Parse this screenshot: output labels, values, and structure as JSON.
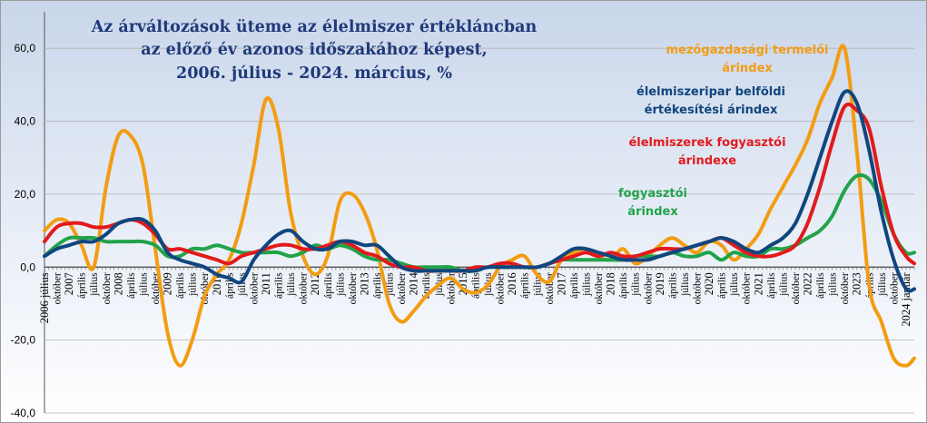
{
  "chart_data": {
    "type": "line",
    "title": [
      "Az árváltozások üteme az élelmiszer  értékláncban",
      "az előző év azonos időszakához  képest,",
      "2006. július  - 2024. március, %"
    ],
    "ylim": [
      -40,
      70
    ],
    "yticks": [
      "-40,0",
      "-20,0",
      "0,0",
      "20,0",
      "40,0",
      "60,0"
    ],
    "ytick_values": [
      -40,
      -20,
      0,
      20,
      40,
      60
    ],
    "x_start": "2006-07",
    "x_end": "2024-03",
    "grid": true,
    "month_labels": {
      "1": "január",
      "4": "április",
      "7": "július",
      "10": "október"
    },
    "year_labels": [
      "2006 július",
      "2007",
      "2008",
      "2009",
      "2010",
      "2011",
      "2012",
      "2013",
      "2014",
      "2015",
      "2016",
      "2017",
      "2018",
      "2019",
      "2020",
      "2021",
      "2022",
      "2023",
      "2024 január"
    ],
    "series": [
      {
        "name": "mezőgazdasági termelői árindex",
        "label_lines": [
          "mezőgazdasági termelői",
          "árindex"
        ],
        "color": "#f39c12",
        "points": [
          [
            "2006-07",
            10
          ],
          [
            "2006-10",
            13
          ],
          [
            "2007-01",
            12
          ],
          [
            "2007-04",
            6
          ],
          [
            "2007-07",
            0
          ],
          [
            "2007-10",
            22
          ],
          [
            "2008-01",
            36
          ],
          [
            "2008-04",
            36
          ],
          [
            "2008-07",
            28
          ],
          [
            "2008-10",
            5
          ],
          [
            "2009-01",
            -18
          ],
          [
            "2009-04",
            -27
          ],
          [
            "2009-07",
            -20
          ],
          [
            "2009-10",
            -8
          ],
          [
            "2010-01",
            -2
          ],
          [
            "2010-04",
            2
          ],
          [
            "2010-07",
            12
          ],
          [
            "2010-10",
            28
          ],
          [
            "2011-01",
            46
          ],
          [
            "2011-04",
            38
          ],
          [
            "2011-07",
            15
          ],
          [
            "2011-10",
            3
          ],
          [
            "2012-01",
            -2
          ],
          [
            "2012-04",
            3
          ],
          [
            "2012-07",
            18
          ],
          [
            "2012-10",
            20
          ],
          [
            "2013-01",
            15
          ],
          [
            "2013-04",
            5
          ],
          [
            "2013-07",
            -10
          ],
          [
            "2013-10",
            -15
          ],
          [
            "2014-01",
            -12
          ],
          [
            "2014-04",
            -8
          ],
          [
            "2014-07",
            -5
          ],
          [
            "2014-10",
            -3
          ],
          [
            "2015-01",
            -6
          ],
          [
            "2015-04",
            -7
          ],
          [
            "2015-07",
            -5
          ],
          [
            "2015-10",
            0
          ],
          [
            "2016-01",
            2
          ],
          [
            "2016-04",
            3
          ],
          [
            "2016-07",
            -2
          ],
          [
            "2016-10",
            -4
          ],
          [
            "2017-01",
            2
          ],
          [
            "2017-04",
            4
          ],
          [
            "2017-07",
            5
          ],
          [
            "2017-10",
            3
          ],
          [
            "2018-01",
            2
          ],
          [
            "2018-04",
            5
          ],
          [
            "2018-07",
            1
          ],
          [
            "2018-10",
            3
          ],
          [
            "2019-01",
            6
          ],
          [
            "2019-04",
            8
          ],
          [
            "2019-07",
            6
          ],
          [
            "2019-10",
            4
          ],
          [
            "2020-01",
            7
          ],
          [
            "2020-04",
            6
          ],
          [
            "2020-07",
            2
          ],
          [
            "2020-10",
            5
          ],
          [
            "2021-01",
            9
          ],
          [
            "2021-04",
            16
          ],
          [
            "2021-07",
            22
          ],
          [
            "2021-10",
            28
          ],
          [
            "2022-01",
            35
          ],
          [
            "2022-04",
            45
          ],
          [
            "2022-07",
            52
          ],
          [
            "2022-10",
            60
          ],
          [
            "2023-01",
            32
          ],
          [
            "2023-04",
            -5
          ],
          [
            "2023-07",
            -15
          ],
          [
            "2023-10",
            -25
          ],
          [
            "2024-01",
            -27
          ],
          [
            "2024-03",
            -25
          ]
        ]
      },
      {
        "name": "élelmiszeripar belföldi értékesítési árindex",
        "label_lines": [
          "élelmiszeripar  belföldi",
          "értékesítési  árindex"
        ],
        "color": "#10467e",
        "points": [
          [
            "2006-07",
            3
          ],
          [
            "2006-10",
            5
          ],
          [
            "2007-01",
            6
          ],
          [
            "2007-04",
            7
          ],
          [
            "2007-07",
            7
          ],
          [
            "2007-10",
            9
          ],
          [
            "2008-01",
            12
          ],
          [
            "2008-04",
            13
          ],
          [
            "2008-07",
            13
          ],
          [
            "2008-10",
            10
          ],
          [
            "2009-01",
            4
          ],
          [
            "2009-04",
            2
          ],
          [
            "2009-07",
            1
          ],
          [
            "2009-10",
            0
          ],
          [
            "2010-01",
            -2
          ],
          [
            "2010-04",
            -3
          ],
          [
            "2010-07",
            -4
          ],
          [
            "2010-10",
            2
          ],
          [
            "2011-01",
            6
          ],
          [
            "2011-04",
            9
          ],
          [
            "2011-07",
            10
          ],
          [
            "2011-10",
            7
          ],
          [
            "2012-01",
            5
          ],
          [
            "2012-04",
            5
          ],
          [
            "2012-07",
            7
          ],
          [
            "2012-10",
            7
          ],
          [
            "2013-01",
            6
          ],
          [
            "2013-04",
            6
          ],
          [
            "2013-07",
            3
          ],
          [
            "2013-10",
            0
          ],
          [
            "2014-01",
            -1
          ],
          [
            "2014-04",
            -1
          ],
          [
            "2014-07",
            -1
          ],
          [
            "2014-10",
            -1
          ],
          [
            "2015-01",
            -1
          ],
          [
            "2015-04",
            -1
          ],
          [
            "2015-07",
            0
          ],
          [
            "2015-10",
            0
          ],
          [
            "2016-01",
            0
          ],
          [
            "2016-04",
            0
          ],
          [
            "2016-07",
            0
          ],
          [
            "2016-10",
            1
          ],
          [
            "2017-01",
            3
          ],
          [
            "2017-04",
            5
          ],
          [
            "2017-07",
            5
          ],
          [
            "2017-10",
            4
          ],
          [
            "2018-01",
            3
          ],
          [
            "2018-04",
            2
          ],
          [
            "2018-07",
            2
          ],
          [
            "2018-10",
            2
          ],
          [
            "2019-01",
            3
          ],
          [
            "2019-04",
            4
          ],
          [
            "2019-07",
            5
          ],
          [
            "2019-10",
            6
          ],
          [
            "2020-01",
            7
          ],
          [
            "2020-04",
            8
          ],
          [
            "2020-07",
            7
          ],
          [
            "2020-10",
            5
          ],
          [
            "2021-01",
            4
          ],
          [
            "2021-04",
            6
          ],
          [
            "2021-07",
            8
          ],
          [
            "2021-10",
            12
          ],
          [
            "2022-01",
            20
          ],
          [
            "2022-04",
            30
          ],
          [
            "2022-07",
            40
          ],
          [
            "2022-10",
            48
          ],
          [
            "2023-01",
            45
          ],
          [
            "2023-04",
            32
          ],
          [
            "2023-07",
            15
          ],
          [
            "2023-10",
            2
          ],
          [
            "2024-01",
            -6
          ],
          [
            "2024-03",
            -6
          ]
        ]
      },
      {
        "name": "élelmiszerek fogyasztói árindexe",
        "label_lines": [
          "élelmiszerek  fogyasztói",
          "árindexe"
        ],
        "color": "#e31a1c",
        "points": [
          [
            "2006-07",
            7
          ],
          [
            "2006-10",
            11
          ],
          [
            "2007-01",
            12
          ],
          [
            "2007-04",
            12
          ],
          [
            "2007-07",
            11
          ],
          [
            "2007-10",
            11
          ],
          [
            "2008-01",
            12
          ],
          [
            "2008-04",
            13
          ],
          [
            "2008-07",
            12
          ],
          [
            "2008-10",
            9
          ],
          [
            "2009-01",
            5
          ],
          [
            "2009-04",
            5
          ],
          [
            "2009-07",
            4
          ],
          [
            "2009-10",
            3
          ],
          [
            "2010-01",
            2
          ],
          [
            "2010-04",
            1
          ],
          [
            "2010-07",
            3
          ],
          [
            "2010-10",
            4
          ],
          [
            "2011-01",
            5
          ],
          [
            "2011-04",
            6
          ],
          [
            "2011-07",
            6
          ],
          [
            "2011-10",
            5
          ],
          [
            "2012-01",
            5
          ],
          [
            "2012-04",
            6
          ],
          [
            "2012-07",
            7
          ],
          [
            "2012-10",
            6
          ],
          [
            "2013-01",
            4
          ],
          [
            "2013-04",
            3
          ],
          [
            "2013-07",
            1
          ],
          [
            "2013-10",
            0
          ],
          [
            "2014-01",
            0
          ],
          [
            "2014-04",
            -1
          ],
          [
            "2014-07",
            -1
          ],
          [
            "2014-10",
            -1
          ],
          [
            "2015-01",
            -1
          ],
          [
            "2015-04",
            0
          ],
          [
            "2015-07",
            0
          ],
          [
            "2015-10",
            1
          ],
          [
            "2016-01",
            1
          ],
          [
            "2016-04",
            0
          ],
          [
            "2016-07",
            0
          ],
          [
            "2016-10",
            1
          ],
          [
            "2017-01",
            2
          ],
          [
            "2017-04",
            3
          ],
          [
            "2017-07",
            4
          ],
          [
            "2017-10",
            3
          ],
          [
            "2018-01",
            4
          ],
          [
            "2018-04",
            3
          ],
          [
            "2018-07",
            3
          ],
          [
            "2018-10",
            4
          ],
          [
            "2019-01",
            5
          ],
          [
            "2019-04",
            5
          ],
          [
            "2019-07",
            5
          ],
          [
            "2019-10",
            6
          ],
          [
            "2020-01",
            7
          ],
          [
            "2020-04",
            8
          ],
          [
            "2020-07",
            6
          ],
          [
            "2020-10",
            4
          ],
          [
            "2021-01",
            3
          ],
          [
            "2021-04",
            3
          ],
          [
            "2021-07",
            4
          ],
          [
            "2021-10",
            6
          ],
          [
            "2022-01",
            12
          ],
          [
            "2022-04",
            22
          ],
          [
            "2022-07",
            34
          ],
          [
            "2022-10",
            44
          ],
          [
            "2023-01",
            43
          ],
          [
            "2023-04",
            38
          ],
          [
            "2023-07",
            22
          ],
          [
            "2023-10",
            9
          ],
          [
            "2024-01",
            3
          ],
          [
            "2024-03",
            1
          ]
        ]
      },
      {
        "name": "fogyasztói árindex",
        "label_lines": [
          "fogyasztói",
          "árindex"
        ],
        "color": "#22a34a",
        "points": [
          [
            "2006-07",
            3
          ],
          [
            "2006-10",
            6
          ],
          [
            "2007-01",
            8
          ],
          [
            "2007-04",
            8
          ],
          [
            "2007-07",
            8
          ],
          [
            "2007-10",
            7
          ],
          [
            "2008-01",
            7
          ],
          [
            "2008-04",
            7
          ],
          [
            "2008-07",
            7
          ],
          [
            "2008-10",
            6
          ],
          [
            "2009-01",
            3
          ],
          [
            "2009-04",
            3
          ],
          [
            "2009-07",
            5
          ],
          [
            "2009-10",
            5
          ],
          [
            "2010-01",
            6
          ],
          [
            "2010-04",
            5
          ],
          [
            "2010-07",
            4
          ],
          [
            "2010-10",
            4
          ],
          [
            "2011-01",
            4
          ],
          [
            "2011-04",
            4
          ],
          [
            "2011-07",
            3
          ],
          [
            "2011-10",
            4
          ],
          [
            "2012-01",
            6
          ],
          [
            "2012-04",
            5
          ],
          [
            "2012-07",
            6
          ],
          [
            "2012-10",
            5
          ],
          [
            "2013-01",
            3
          ],
          [
            "2013-04",
            2
          ],
          [
            "2013-07",
            2
          ],
          [
            "2013-10",
            1
          ],
          [
            "2014-01",
            0
          ],
          [
            "2014-04",
            0
          ],
          [
            "2014-07",
            0
          ],
          [
            "2014-10",
            0
          ],
          [
            "2015-01",
            -1
          ],
          [
            "2015-04",
            -1
          ],
          [
            "2015-07",
            0
          ],
          [
            "2015-10",
            0
          ],
          [
            "2016-01",
            0
          ],
          [
            "2016-04",
            0
          ],
          [
            "2016-07",
            0
          ],
          [
            "2016-10",
            1
          ],
          [
            "2017-01",
            2
          ],
          [
            "2017-04",
            2
          ],
          [
            "2017-07",
            2
          ],
          [
            "2017-10",
            2
          ],
          [
            "2018-01",
            2
          ],
          [
            "2018-04",
            2
          ],
          [
            "2018-07",
            3
          ],
          [
            "2018-10",
            3
          ],
          [
            "2019-01",
            3
          ],
          [
            "2019-04",
            4
          ],
          [
            "2019-07",
            3
          ],
          [
            "2019-10",
            3
          ],
          [
            "2020-01",
            4
          ],
          [
            "2020-04",
            2
          ],
          [
            "2020-07",
            4
          ],
          [
            "2020-10",
            3
          ],
          [
            "2021-01",
            3
          ],
          [
            "2021-04",
            5
          ],
          [
            "2021-07",
            5
          ],
          [
            "2021-10",
            6
          ],
          [
            "2022-01",
            8
          ],
          [
            "2022-04",
            10
          ],
          [
            "2022-07",
            14
          ],
          [
            "2022-10",
            21
          ],
          [
            "2023-01",
            25
          ],
          [
            "2023-04",
            24
          ],
          [
            "2023-07",
            18
          ],
          [
            "2023-10",
            9
          ],
          [
            "2024-01",
            4
          ],
          [
            "2024-03",
            4
          ]
        ]
      }
    ]
  }
}
